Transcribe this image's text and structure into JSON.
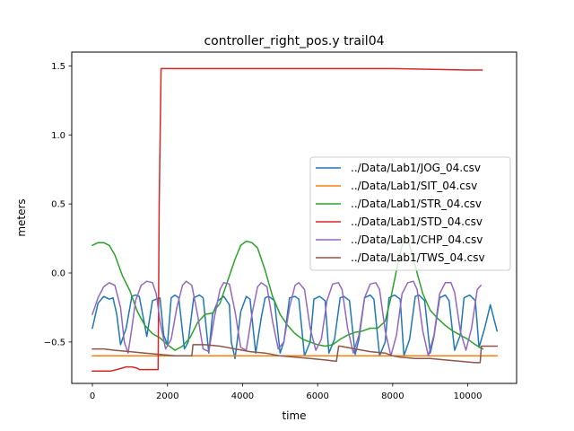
{
  "chart_data": {
    "type": "line",
    "title": "controller_right_pos.y trail04",
    "xlabel": "time",
    "ylabel": "meters",
    "xlim": [
      -550,
      11300
    ],
    "ylim": [
      -0.8,
      1.6
    ],
    "xticks": [
      0,
      2000,
      4000,
      6000,
      8000,
      10000
    ],
    "xtick_labels": [
      "0",
      "2000",
      "4000",
      "6000",
      "8000",
      "10000"
    ],
    "yticks": [
      -0.5,
      0.0,
      0.5,
      1.0,
      1.5
    ],
    "ytick_labels": [
      "−0.5",
      "0.0",
      "0.5",
      "1.0",
      "1.5"
    ],
    "grid": false,
    "legend_position": "center-right",
    "series": [
      {
        "name": "../Data/Lab1/JOG_04.csv",
        "color": "#1f77b4",
        "x": [
          0,
          150,
          300,
          450,
          550,
          650,
          750,
          900,
          1050,
          1150,
          1250,
          1450,
          1600,
          1800,
          1900,
          2000,
          2100,
          2200,
          2300,
          2450,
          2550,
          2700,
          2850,
          2950,
          3100,
          3200,
          3350,
          3500,
          3650,
          3700,
          3800,
          3950,
          4100,
          4200,
          4350,
          4500,
          4600,
          4700,
          4850,
          5000,
          5100,
          5250,
          5400,
          5500,
          5650,
          5800,
          5900,
          6050,
          6200,
          6300,
          6450,
          6600,
          6700,
          6850,
          7000,
          7100,
          7250,
          7400,
          7500,
          7650,
          7800,
          7900,
          8050,
          8200,
          8300,
          8450,
          8600,
          8700,
          8850,
          9000,
          9100,
          9250,
          9400,
          9500,
          9650,
          9800,
          9900,
          10050,
          10200,
          10300,
          10450,
          10600,
          10780
        ],
        "y": [
          -0.4,
          -0.22,
          -0.17,
          -0.19,
          -0.18,
          -0.3,
          -0.52,
          -0.4,
          -0.17,
          -0.16,
          -0.17,
          -0.46,
          -0.2,
          -0.18,
          -0.45,
          -0.52,
          -0.18,
          -0.16,
          -0.18,
          -0.55,
          -0.5,
          -0.18,
          -0.16,
          -0.18,
          -0.58,
          -0.3,
          -0.2,
          -0.17,
          -0.23,
          -0.5,
          -0.62,
          -0.28,
          -0.17,
          -0.19,
          -0.58,
          -0.32,
          -0.18,
          -0.17,
          -0.2,
          -0.58,
          -0.5,
          -0.18,
          -0.17,
          -0.19,
          -0.6,
          -0.5,
          -0.19,
          -0.17,
          -0.2,
          -0.58,
          -0.48,
          -0.18,
          -0.17,
          -0.2,
          -0.59,
          -0.48,
          -0.18,
          -0.16,
          -0.19,
          -0.6,
          -0.5,
          -0.18,
          -0.16,
          -0.19,
          -0.6,
          -0.48,
          -0.17,
          -0.16,
          -0.2,
          -0.58,
          -0.46,
          -0.18,
          -0.16,
          -0.2,
          -0.56,
          -0.45,
          -0.18,
          -0.16,
          -0.2,
          -0.54,
          -0.4,
          -0.23,
          -0.42
        ]
      },
      {
        "name": "../Data/Lab1/SIT_04.csv",
        "color": "#ff7f0e",
        "x": [
          0,
          10780
        ],
        "y": [
          -0.6,
          -0.6
        ]
      },
      {
        "name": "../Data/Lab1/STR_04.csv",
        "color": "#2ca02c",
        "x": [
          0,
          150,
          300,
          450,
          600,
          800,
          1000,
          1200,
          1400,
          1600,
          1800,
          2000,
          2200,
          2400,
          2600,
          2800,
          3000,
          3200,
          3400,
          3600,
          3800,
          3950,
          4100,
          4250,
          4400,
          4600,
          4800,
          5000,
          5200,
          5400,
          5600,
          5800,
          6000,
          6200,
          6400,
          6600,
          6800,
          7000,
          7200,
          7400,
          7600,
          7800,
          7950,
          8100,
          8250,
          8400,
          8600,
          8800,
          9000,
          9200,
          9400,
          9600,
          9800,
          10000,
          10200,
          10400
        ],
        "y": [
          0.2,
          0.22,
          0.22,
          0.2,
          0.13,
          -0.02,
          -0.13,
          -0.28,
          -0.38,
          -0.44,
          -0.47,
          -0.52,
          -0.56,
          -0.53,
          -0.47,
          -0.36,
          -0.3,
          -0.29,
          -0.22,
          -0.06,
          0.1,
          0.2,
          0.23,
          0.22,
          0.18,
          0.02,
          -0.17,
          -0.3,
          -0.38,
          -0.44,
          -0.48,
          -0.5,
          -0.52,
          -0.53,
          -0.52,
          -0.48,
          -0.45,
          -0.43,
          -0.42,
          -0.4,
          -0.4,
          -0.35,
          -0.18,
          0.02,
          0.2,
          0.25,
          0.05,
          -0.15,
          -0.27,
          -0.33,
          -0.38,
          -0.42,
          -0.45,
          -0.48,
          -0.52,
          -0.55
        ]
      },
      {
        "name": "../Data/Lab1/STD_04.csv",
        "color": "#d62728",
        "x": [
          0,
          300,
          500,
          650,
          900,
          1050,
          1200,
          1250,
          1500,
          1750,
          1780,
          1830,
          2000,
          4000,
          6000,
          8000,
          10000,
          10380
        ],
        "y": [
          -0.71,
          -0.71,
          -0.71,
          -0.7,
          -0.68,
          -0.68,
          -0.69,
          -0.7,
          -0.7,
          -0.7,
          0.5,
          1.48,
          1.48,
          1.48,
          1.48,
          1.48,
          1.47,
          1.47
        ]
      },
      {
        "name": "../Data/Lab1/CHP_04.csv",
        "color": "#9467bd",
        "x": [
          0,
          150,
          300,
          450,
          600,
          750,
          850,
          950,
          1050,
          1150,
          1300,
          1450,
          1600,
          1700,
          1800,
          1950,
          2100,
          2250,
          2400,
          2500,
          2650,
          2800,
          2950,
          3100,
          3250,
          3400,
          3500,
          3650,
          3800,
          3950,
          4100,
          4250,
          4400,
          4500,
          4650,
          4800,
          4950,
          5100,
          5250,
          5400,
          5500,
          5650,
          5800,
          5950,
          6100,
          6250,
          6400,
          6550,
          6650,
          6800,
          6950,
          7100,
          7250,
          7400,
          7550,
          7650,
          7800,
          7950,
          8100,
          8250,
          8400,
          8550,
          8650,
          8800,
          8950,
          9100,
          9250,
          9400,
          9550,
          9650,
          9800,
          9950,
          10100,
          10250,
          10350
        ],
        "y": [
          -0.3,
          -0.18,
          -0.1,
          -0.07,
          -0.09,
          -0.25,
          -0.5,
          -0.58,
          -0.4,
          -0.2,
          -0.09,
          -0.06,
          -0.07,
          -0.15,
          -0.35,
          -0.55,
          -0.48,
          -0.25,
          -0.09,
          -0.06,
          -0.09,
          -0.3,
          -0.55,
          -0.57,
          -0.32,
          -0.12,
          -0.07,
          -0.08,
          -0.28,
          -0.54,
          -0.56,
          -0.3,
          -0.1,
          -0.07,
          -0.1,
          -0.35,
          -0.55,
          -0.5,
          -0.25,
          -0.09,
          -0.07,
          -0.12,
          -0.4,
          -0.56,
          -0.48,
          -0.2,
          -0.08,
          -0.07,
          -0.12,
          -0.4,
          -0.58,
          -0.45,
          -0.18,
          -0.08,
          -0.07,
          -0.12,
          -0.42,
          -0.6,
          -0.45,
          -0.15,
          -0.07,
          -0.06,
          -0.12,
          -0.42,
          -0.6,
          -0.45,
          -0.15,
          -0.07,
          -0.07,
          -0.14,
          -0.42,
          -0.56,
          -0.4,
          -0.12,
          -0.09
        ]
      },
      {
        "name": "../Data/Lab1/TWS_04.csv",
        "color": "#8c564b",
        "x": [
          0,
          300,
          600,
          1000,
          1400,
          1800,
          2200,
          2650,
          2680,
          2720,
          3000,
          3400,
          3800,
          4200,
          4600,
          5000,
          5400,
          5800,
          6200,
          6500,
          6560,
          6600,
          7000,
          7400,
          7800,
          8000,
          8200,
          8600,
          9000,
          9400,
          9800,
          10200,
          10330,
          10360,
          10500,
          10780
        ],
        "y": [
          -0.55,
          -0.55,
          -0.56,
          -0.57,
          -0.58,
          -0.59,
          -0.6,
          -0.6,
          -0.52,
          -0.52,
          -0.52,
          -0.53,
          -0.55,
          -0.57,
          -0.58,
          -0.6,
          -0.61,
          -0.62,
          -0.63,
          -0.64,
          -0.53,
          -0.53,
          -0.55,
          -0.57,
          -0.58,
          -0.6,
          -0.61,
          -0.62,
          -0.62,
          -0.63,
          -0.64,
          -0.65,
          -0.65,
          -0.53,
          -0.53,
          -0.53
        ]
      }
    ]
  }
}
